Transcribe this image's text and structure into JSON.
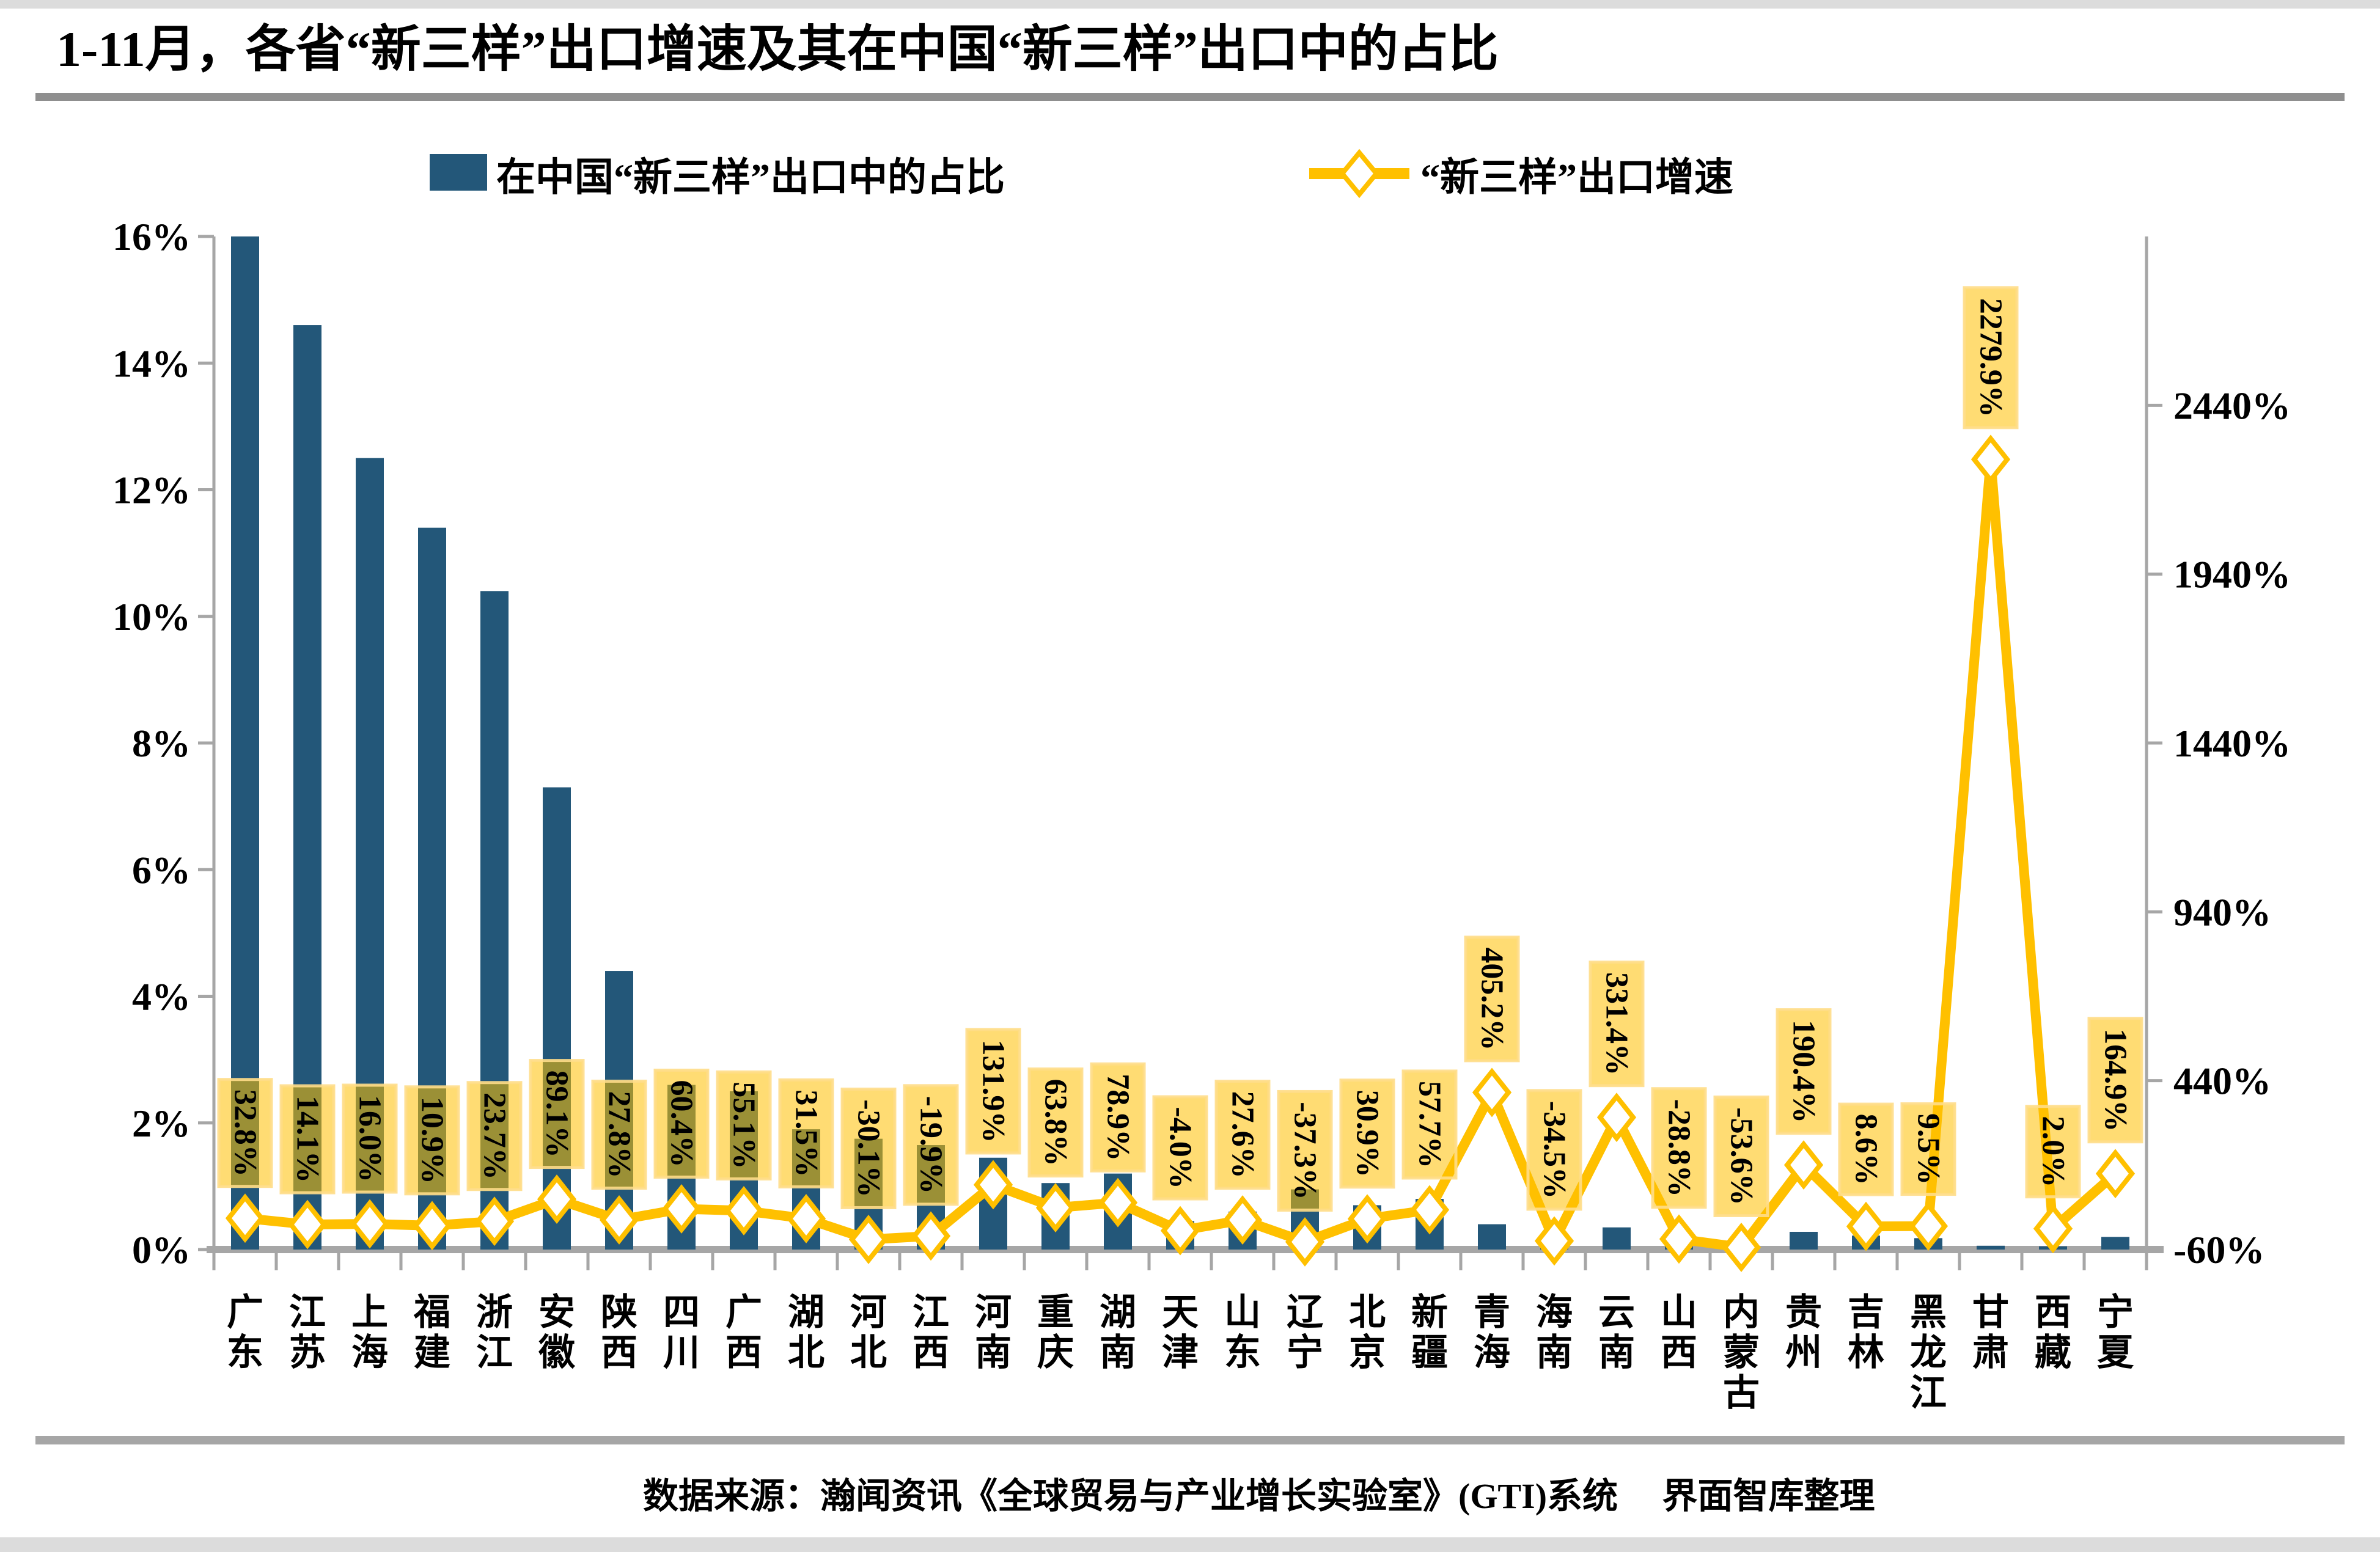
{
  "page": {
    "title_label": "1-11月，各省“新三样”出口增速及其在中国“新三样”出口中的占比",
    "source_label": "数据来源：瀚闻资讯《全球贸易与产业增长实验室》(GTI)系统　 界面智库整理"
  },
  "legend": {
    "bar_label": "在中国“新三样”出口中的占比",
    "line_label": "“新三样”出口增速"
  },
  "colors": {
    "bar": "#235779",
    "line": "#FFC000",
    "marker_fill": "#FFFFFF",
    "label_box_fill": "#FFC000",
    "label_box_border": "#FFDD88",
    "axis": "#A6A6A6",
    "rule": "#8F8F8F",
    "edge_band": "#DCDCDC",
    "text": "#000000"
  },
  "chart_data": {
    "type": "combo-bar-line",
    "title": "1-11月，各省“新三样”出口增速及其在中国“新三样”出口中的占比",
    "legend_position": "top",
    "grid": false,
    "categories": [
      "广东",
      "江苏",
      "上海",
      "福建",
      "浙江",
      "安徽",
      "陕西",
      "四川",
      "广西",
      "湖北",
      "河北",
      "江西",
      "河南",
      "重庆",
      "湖南",
      "天津",
      "山东",
      "辽宁",
      "北京",
      "新疆",
      "青海",
      "海南",
      "云南",
      "山西",
      "内蒙古",
      "贵州",
      "吉林",
      "黑龙江",
      "甘肃",
      "西藏",
      "宁夏"
    ],
    "series": [
      {
        "name": "在中国“新三样”出口中的占比",
        "type": "bar",
        "axis": "left",
        "unit": "%",
        "values": [
          16.0,
          14.6,
          12.5,
          11.4,
          10.4,
          7.3,
          4.4,
          2.6,
          2.5,
          1.9,
          1.75,
          1.65,
          1.45,
          1.05,
          1.2,
          0.45,
          0.6,
          0.95,
          0.7,
          0.8,
          0.4,
          0.05,
          0.35,
          0.15,
          0.05,
          0.28,
          0.22,
          0.18,
          0.06,
          0.05,
          0.2
        ]
      },
      {
        "name": "“新三样”出口增速",
        "type": "line",
        "axis": "right",
        "unit": "%",
        "values": [
          32.8,
          14.1,
          16.0,
          10.9,
          23.7,
          89.1,
          27.8,
          60.4,
          55.1,
          31.5,
          -30.1,
          -19.9,
          131.9,
          63.8,
          78.9,
          -4.0,
          27.6,
          -37.3,
          30.9,
          57.7,
          405.2,
          -34.5,
          331.4,
          -28.8,
          -53.6,
          190.4,
          8.6,
          9.5,
          2279.9,
          2.0,
          164.9
        ],
        "point_labels": [
          "32.8%",
          "14.1%",
          "16.0%",
          "10.9%",
          "23.7%",
          "89.1%",
          "27.8%",
          "60.4%",
          "55.1%",
          "31.5%",
          "-30.1%",
          "-19.9%",
          "131.9%",
          "63.8%",
          "78.9%",
          "-4.0%",
          "27.6%",
          "-37.3%",
          "30.9%",
          "57.7%",
          "405.2%",
          "-34.5%",
          "331.4%",
          "-28.8%",
          "-53.6%",
          "190.4%",
          "8.6%",
          "9.5%",
          "2279.9%",
          "2.0%",
          "164.9%"
        ]
      }
    ],
    "left_axis": {
      "min": 0,
      "max": 16,
      "step": 2,
      "tick_labels": [
        "16%",
        "14%",
        "12%",
        "10%",
        "8%",
        "6%",
        "4%",
        "2%",
        "0%"
      ]
    },
    "right_axis": {
      "min": -60,
      "max": 2940,
      "step": 500,
      "tick_labels": [
        "2440%",
        "1940%",
        "1440%",
        "940%",
        "440%",
        "-60%"
      ],
      "tick_values": [
        2440,
        1940,
        1440,
        940,
        440,
        -60
      ]
    }
  }
}
